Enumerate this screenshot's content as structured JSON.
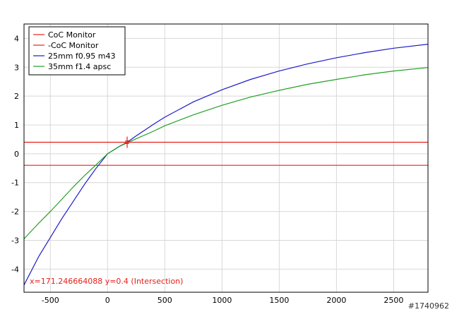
{
  "chart_data": {
    "type": "line",
    "xlim": [
      -730,
      2800
    ],
    "ylim": [
      -4.8,
      4.5
    ],
    "x_ticks": [
      -500,
      0,
      500,
      1000,
      1500,
      2000,
      2500
    ],
    "y_ticks": [
      -4,
      -3,
      -2,
      -1,
      0,
      1,
      2,
      3,
      4
    ],
    "x_tick_labels": [
      "-500",
      "0",
      "500",
      "1000",
      "1500",
      "2000",
      "2500"
    ],
    "y_tick_labels": [
      "-4",
      "-3",
      "-2",
      "-1",
      "0",
      "1",
      "2",
      "3",
      "4"
    ],
    "grid": true,
    "legend_position": "top-left",
    "series": [
      {
        "name": "CoC Monitor",
        "color": "#e8201a",
        "x": [
          -730,
          2800
        ],
        "y": [
          0.4,
          0.4
        ]
      },
      {
        "name": "-CoC Monitor",
        "color": "#e8201a",
        "x": [
          -730,
          2800
        ],
        "y": [
          -0.4,
          -0.4
        ]
      },
      {
        "name": "25mm f0.95 m43",
        "color": "#1c1cc8",
        "x": [
          -730,
          -600,
          -500,
          -400,
          -300,
          -200,
          -100,
          0,
          100,
          171,
          250,
          400,
          500,
          750,
          1000,
          1250,
          1500,
          1750,
          2000,
          2250,
          2500,
          2800
        ],
        "y": [
          -4.55,
          -3.55,
          -2.9,
          -2.25,
          -1.65,
          -1.05,
          -0.5,
          0.0,
          0.25,
          0.4,
          0.62,
          1.02,
          1.27,
          1.8,
          2.22,
          2.58,
          2.87,
          3.12,
          3.33,
          3.51,
          3.66,
          3.8
        ]
      },
      {
        "name": "35mm f1.4 apsc",
        "color": "#23a023",
        "x": [
          -730,
          -600,
          -500,
          -400,
          -300,
          -200,
          -100,
          0,
          100,
          171,
          250,
          400,
          500,
          750,
          1000,
          1250,
          1500,
          1750,
          2000,
          2250,
          2500,
          2800
        ],
        "y": [
          -2.95,
          -2.4,
          -2.0,
          -1.58,
          -1.15,
          -0.75,
          -0.38,
          0.0,
          0.25,
          0.38,
          0.52,
          0.78,
          0.97,
          1.35,
          1.68,
          1.97,
          2.2,
          2.41,
          2.58,
          2.74,
          2.87,
          2.99
        ]
      }
    ],
    "intersection_marker": {
      "x": 171.246664088,
      "y": 0.4,
      "color": "#e8201a"
    },
    "annotation": "x=171.246664088 y=0.4 (Intersection)"
  },
  "watermark": "#1740962",
  "colors": {
    "grid": "#d8d8d8",
    "axis": "#000000",
    "annotation": "#e8201a"
  }
}
